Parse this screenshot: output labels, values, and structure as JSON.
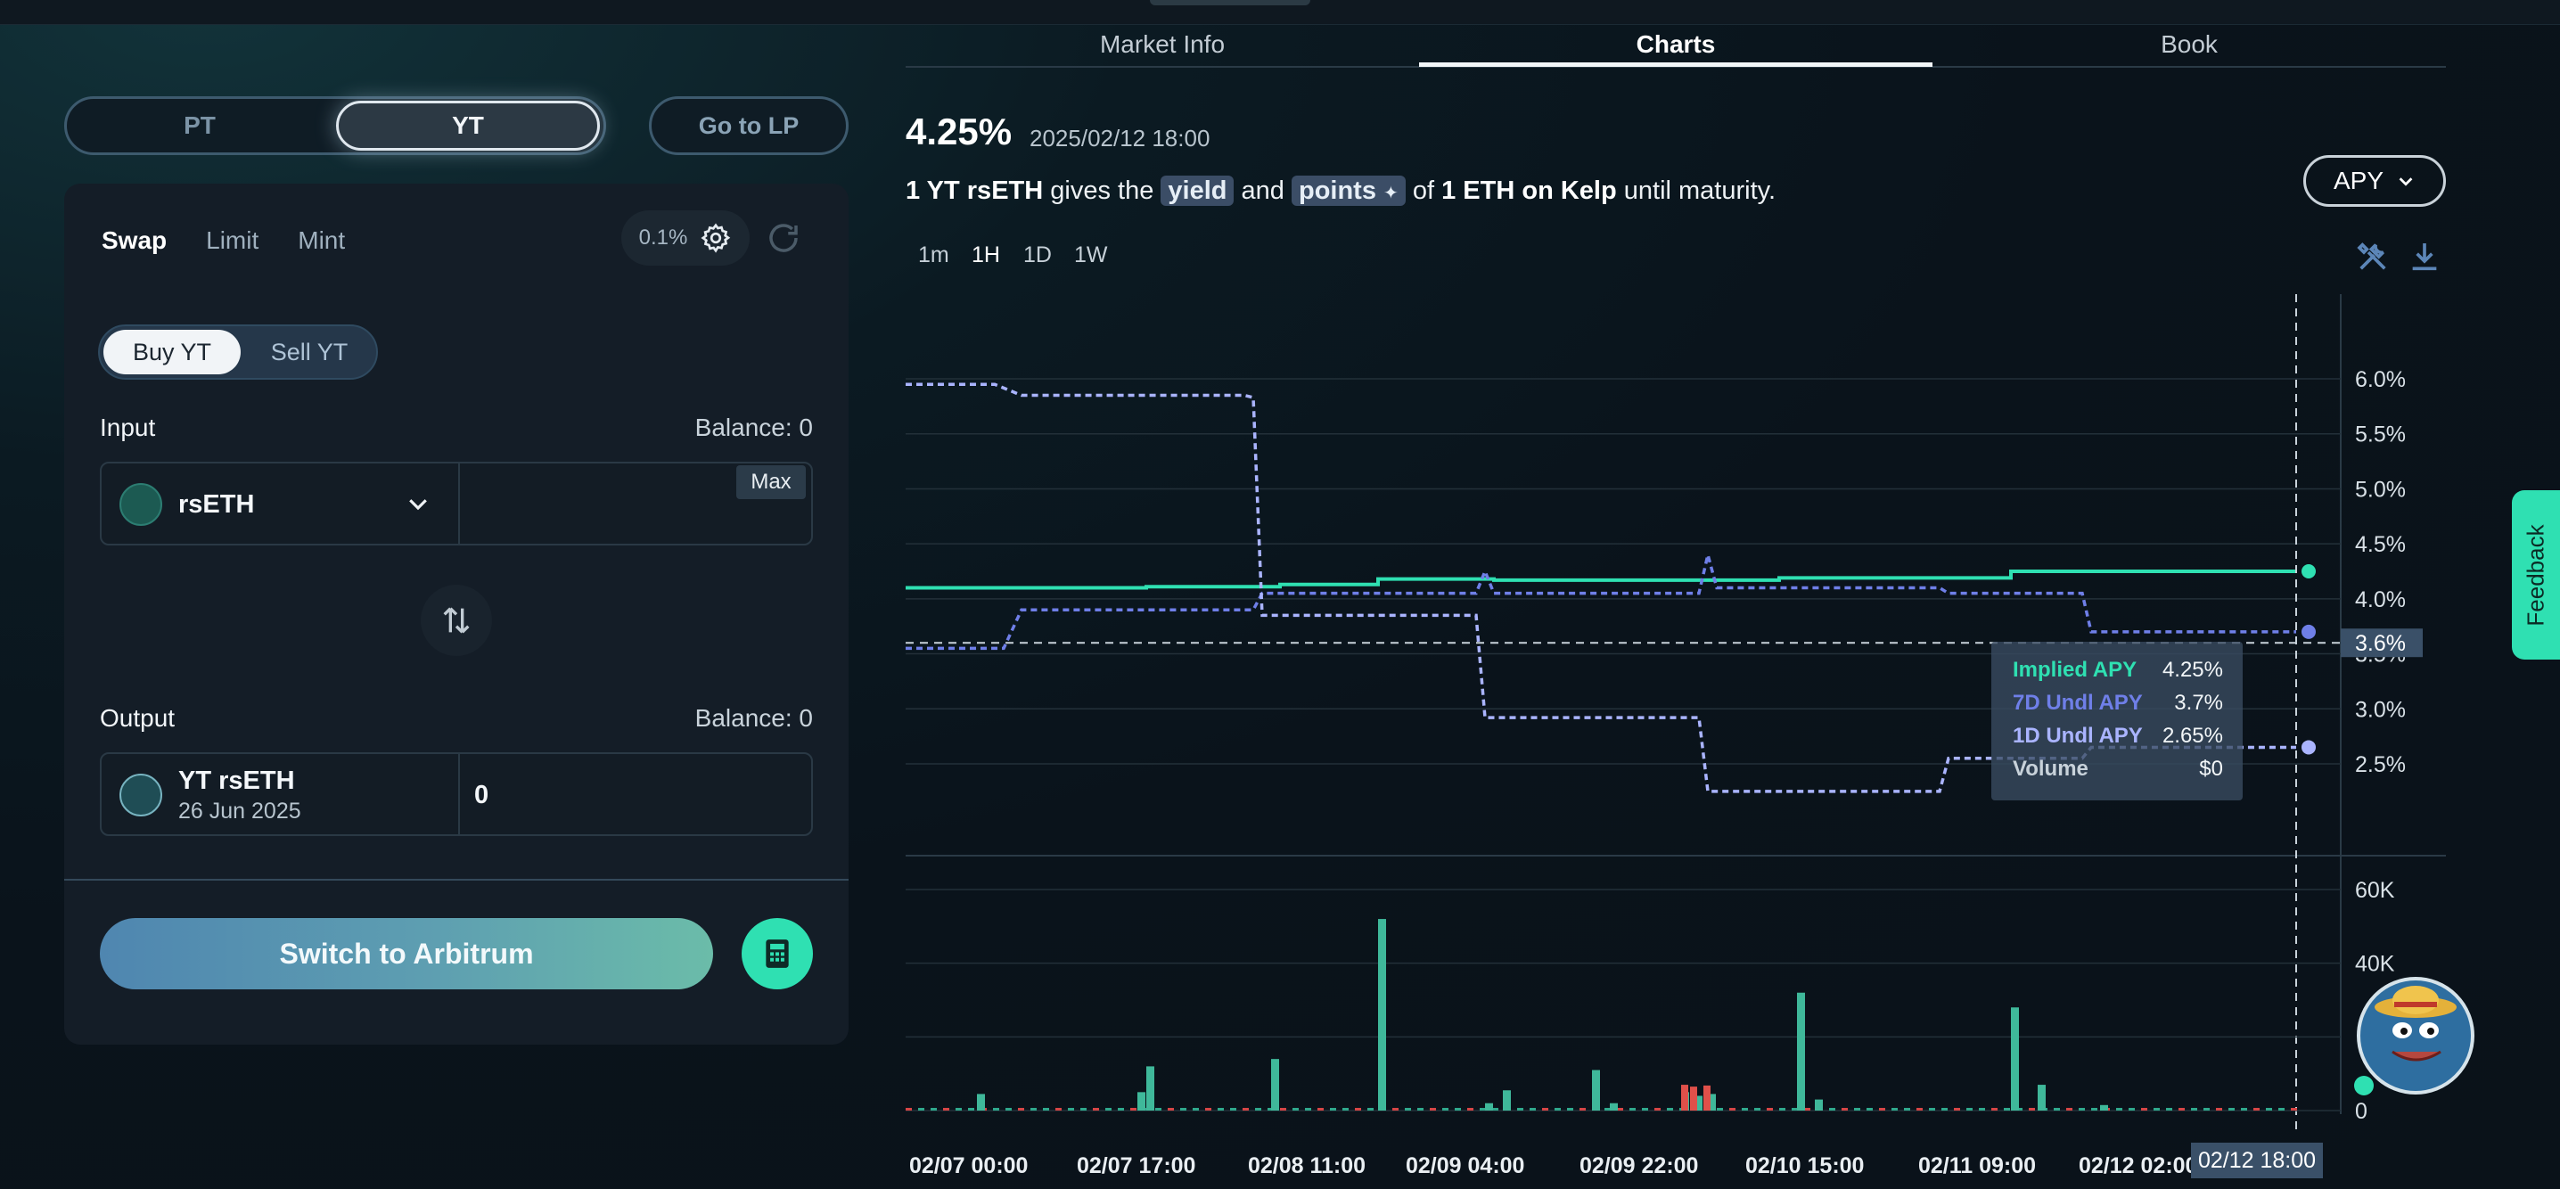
{
  "left": {
    "mode_tabs": [
      "PT",
      "YT"
    ],
    "active_mode": "YT",
    "go_to_lp": "Go to LP",
    "trade_tabs": [
      "Swap",
      "Limit",
      "Mint"
    ],
    "active_trade_tab": "Swap",
    "slippage": "0.1%",
    "buy_label": "Buy YT",
    "sell_label": "Sell YT",
    "input": {
      "label": "Input",
      "balance": "Balance: 0",
      "token": "rsETH",
      "max_label": "Max",
      "value": ""
    },
    "output": {
      "label": "Output",
      "balance": "Balance: 0",
      "token": "YT rsETH",
      "token_sub": "26 Jun 2025",
      "value": "0"
    },
    "switch_label": "Switch to Arbitrum"
  },
  "right": {
    "tabs": [
      "Market Info",
      "Charts",
      "Book"
    ],
    "active_tab": "Charts",
    "headline_value": "4.25%",
    "headline_date": "2025/02/12 18:00",
    "desc": {
      "p1": "1 YT rsETH",
      "p2": " gives the ",
      "pill1": "yield",
      "p3": " and ",
      "pill2": "points",
      "p4": " of ",
      "p5": "1 ETH on Kelp",
      "p6": " until maturity."
    },
    "metric_dropdown": "APY",
    "timeframes": [
      "1m",
      "1H",
      "1D",
      "1W"
    ],
    "active_timeframe": "1H",
    "feedback": "Feedback"
  },
  "chart_data": {
    "type": "line",
    "x": [
      "02/07 00:00",
      "02/07 17:00",
      "02/08 11:00",
      "02/09 04:00",
      "02/09 22:00",
      "02/10 15:00",
      "02/11 09:00",
      "02/12 02:00",
      "02/12 18:00"
    ],
    "y_ticks": [
      "6.0%",
      "5.5%",
      "5.0%",
      "4.5%",
      "4.0%",
      "3.5%",
      "3.0%",
      "2.5%"
    ],
    "ylim": [
      2.2,
      6.3
    ],
    "crosshair_label": "3.6%",
    "crosshair_x_label": "02/12 18:00",
    "volume_ticks": [
      "60K",
      "40K",
      "0"
    ],
    "tooltip": [
      {
        "name": "Implied APY",
        "value": "4.25%",
        "color": "#2fe0b2"
      },
      {
        "name": "7D Undl APY",
        "value": "3.7%",
        "color": "#6f7fe8"
      },
      {
        "name": "1D Undl APY",
        "value": "2.65%",
        "color": "#aab4ff"
      },
      {
        "name": "Volume",
        "value": "$0",
        "color": "#c8d2da"
      }
    ],
    "series": [
      {
        "name": "Implied APY",
        "color": "#2fe0b2",
        "values": [
          [
            0,
            4.1
          ],
          [
            270,
            4.1
          ],
          [
            270,
            4.11
          ],
          [
            420,
            4.11
          ],
          [
            420,
            4.13
          ],
          [
            530,
            4.13
          ],
          [
            530,
            4.18
          ],
          [
            660,
            4.18
          ],
          [
            660,
            4.17
          ],
          [
            980,
            4.17
          ],
          [
            980,
            4.19
          ],
          [
            1240,
            4.19
          ],
          [
            1240,
            4.25
          ],
          [
            1560,
            4.25
          ]
        ]
      },
      {
        "name": "7D Undl APY",
        "color": "#6f7fe8",
        "values": [
          [
            0,
            3.55
          ],
          [
            110,
            3.55
          ],
          [
            130,
            3.9
          ],
          [
            390,
            3.9
          ],
          [
            400,
            4.05
          ],
          [
            640,
            4.05
          ],
          [
            650,
            4.25
          ],
          [
            660,
            4.05
          ],
          [
            890,
            4.05
          ],
          [
            900,
            4.4
          ],
          [
            910,
            4.1
          ],
          [
            1160,
            4.1
          ],
          [
            1170,
            4.05
          ],
          [
            1320,
            4.05
          ],
          [
            1330,
            3.7
          ],
          [
            1560,
            3.7
          ]
        ]
      },
      {
        "name": "1D Undl APY",
        "color": "#aab4ff",
        "values": [
          [
            0,
            5.95
          ],
          [
            100,
            5.95
          ],
          [
            130,
            5.85
          ],
          [
            380,
            5.85
          ],
          [
            390,
            5.83
          ],
          [
            400,
            3.85
          ],
          [
            640,
            3.85
          ],
          [
            650,
            2.92
          ],
          [
            890,
            2.92
          ],
          [
            900,
            2.25
          ],
          [
            1160,
            2.25
          ],
          [
            1170,
            2.55
          ],
          [
            1320,
            2.55
          ],
          [
            1330,
            2.65
          ],
          [
            1560,
            2.65
          ]
        ]
      }
    ],
    "volume": [
      {
        "pos": 80,
        "v": 4500
      },
      {
        "pos": 260,
        "v": 5000
      },
      {
        "pos": 270,
        "v": 12000
      },
      {
        "pos": 410,
        "v": 14000
      },
      {
        "pos": 530,
        "v": 52000
      },
      {
        "pos": 650,
        "v": 2000
      },
      {
        "pos": 670,
        "v": 5500
      },
      {
        "pos": 770,
        "v": 11000
      },
      {
        "pos": 790,
        "v": 2000
      },
      {
        "pos": 870,
        "v": 5000
      },
      {
        "pos": 885,
        "v": 4000
      },
      {
        "pos": 900,
        "v": 4500
      },
      {
        "pos": 1000,
        "v": 32000
      },
      {
        "pos": 1020,
        "v": 3000
      },
      {
        "pos": 1240,
        "v": 28000
      },
      {
        "pos": 1270,
        "v": 7000
      },
      {
        "pos": 1340,
        "v": 1500
      }
    ]
  }
}
